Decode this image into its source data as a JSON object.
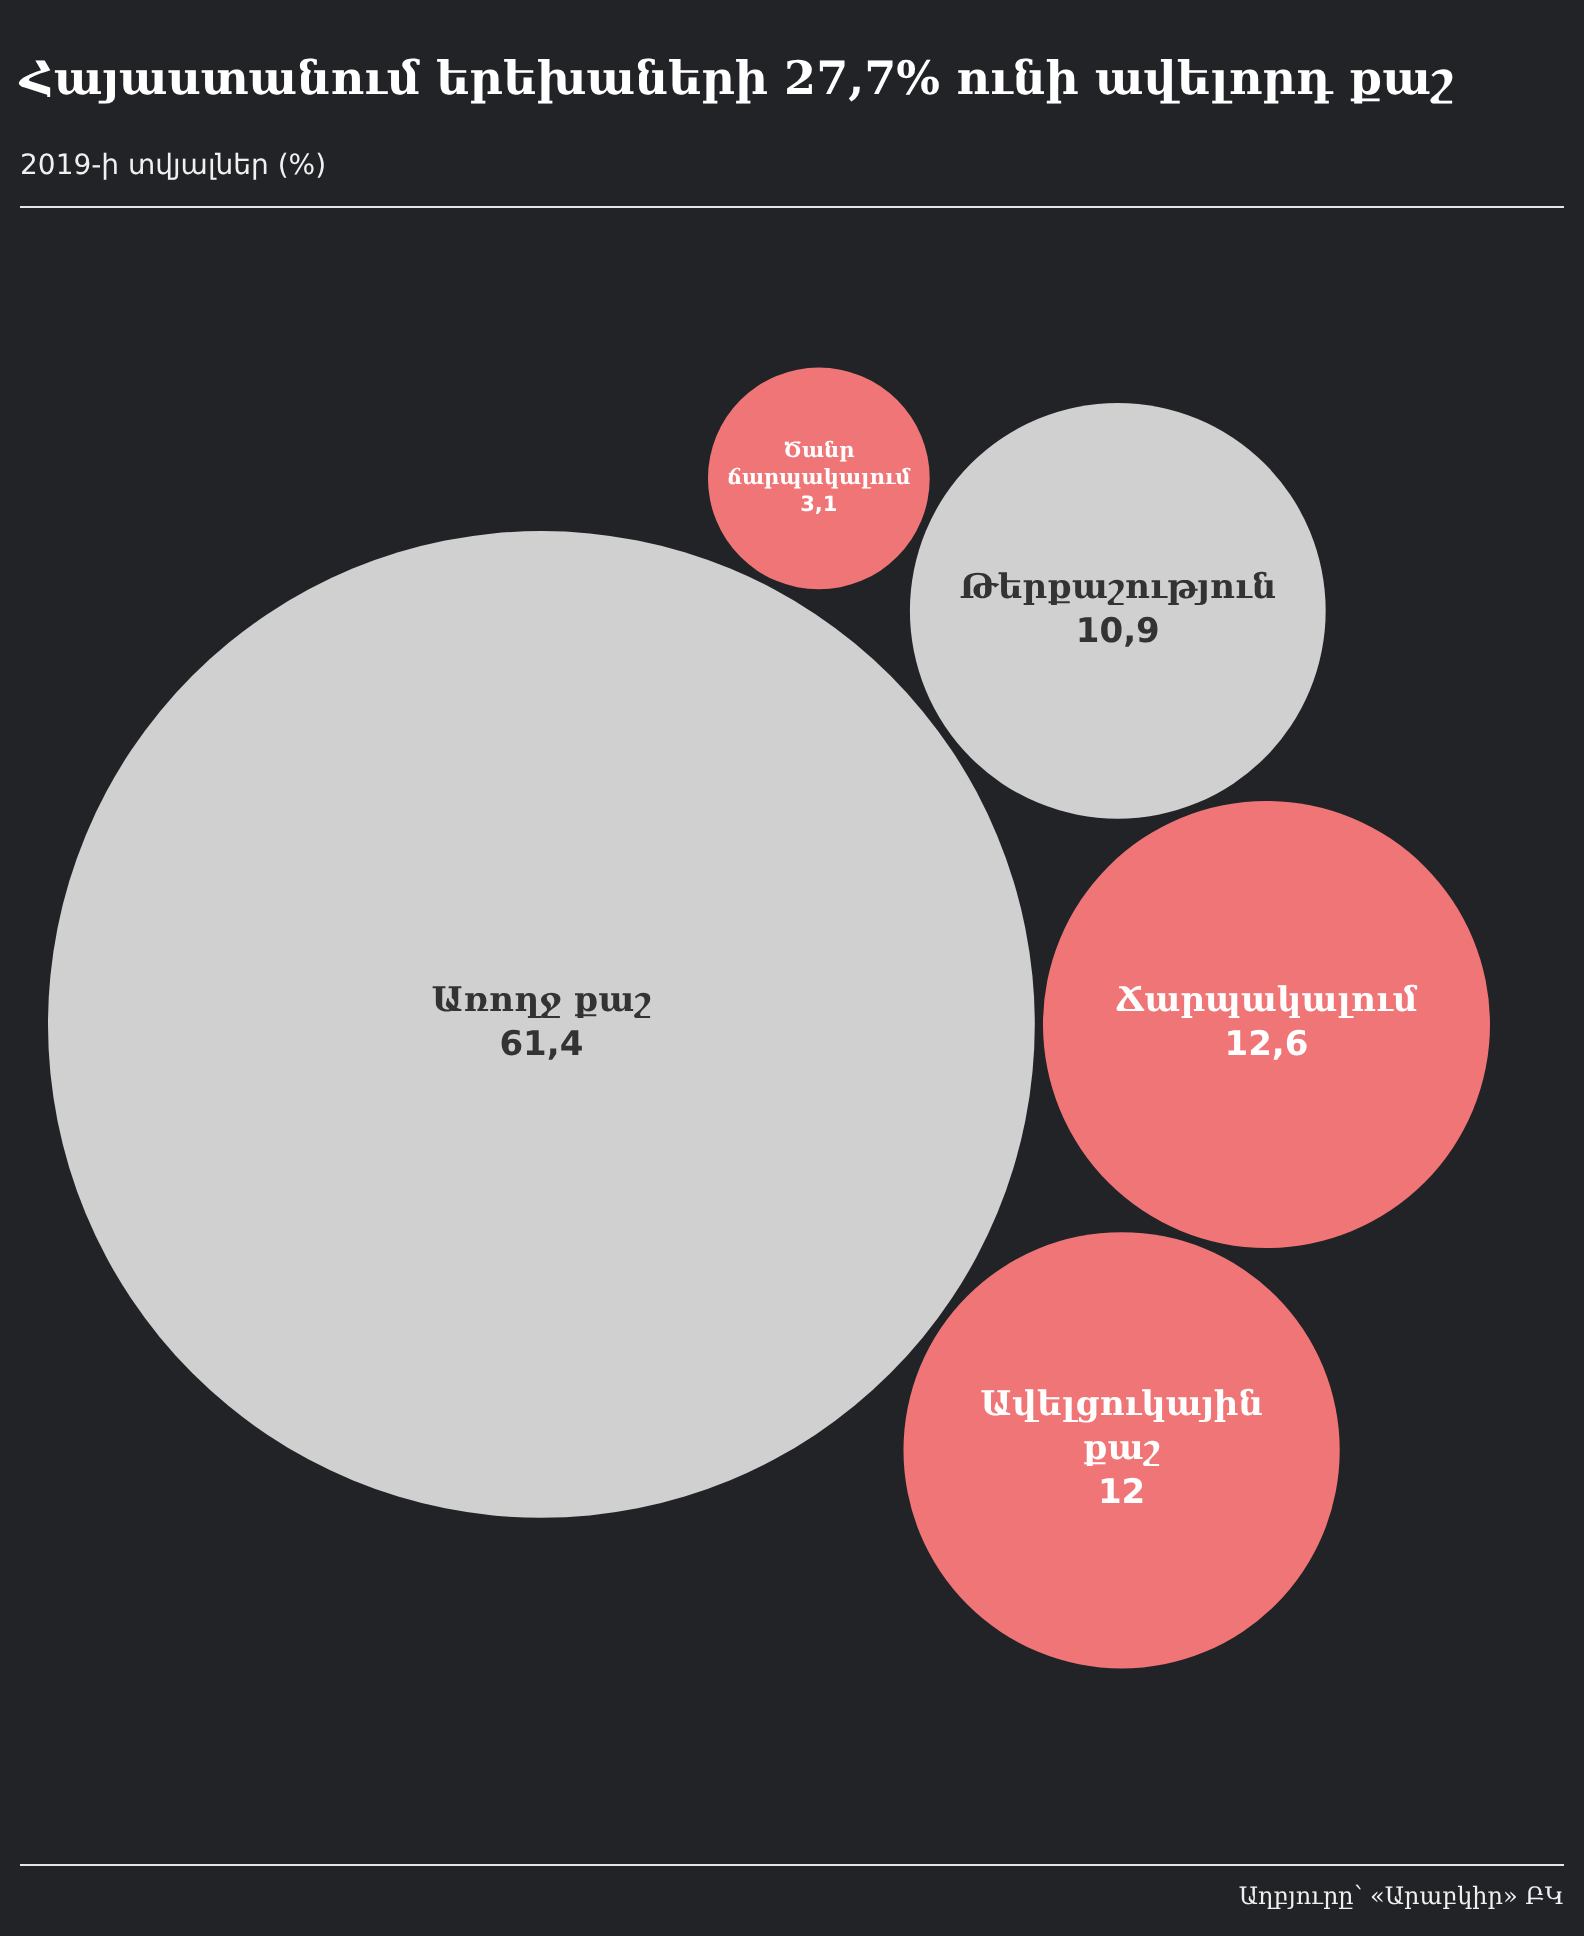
{
  "chart_data": {
    "type": "other",
    "title": "Հայաստանում երեխաների 27,7% ունի ավելորդ քաշ",
    "subtitle": "2019-ի տվյալներ (%)",
    "annotations": [
      "Աղբյուրը՝ «Արաբկիր» ԲԿ"
    ],
    "categories": [
      "Առողջ քաշ",
      "Ավելցուկային քաշ",
      "Ճարպակալում",
      "Թերքաշություն",
      "Ծանր ճարպակալում"
    ],
    "values": [
      61.4,
      12,
      12.6,
      10.9,
      3.1
    ],
    "value_labels": [
      "61,4",
      "12",
      "12,6",
      "10,9",
      "3,1"
    ],
    "colors": [
      "#d0d0d0",
      "#f07577",
      "#f07577",
      "#d0d0d0",
      "#f07577"
    ]
  }
}
